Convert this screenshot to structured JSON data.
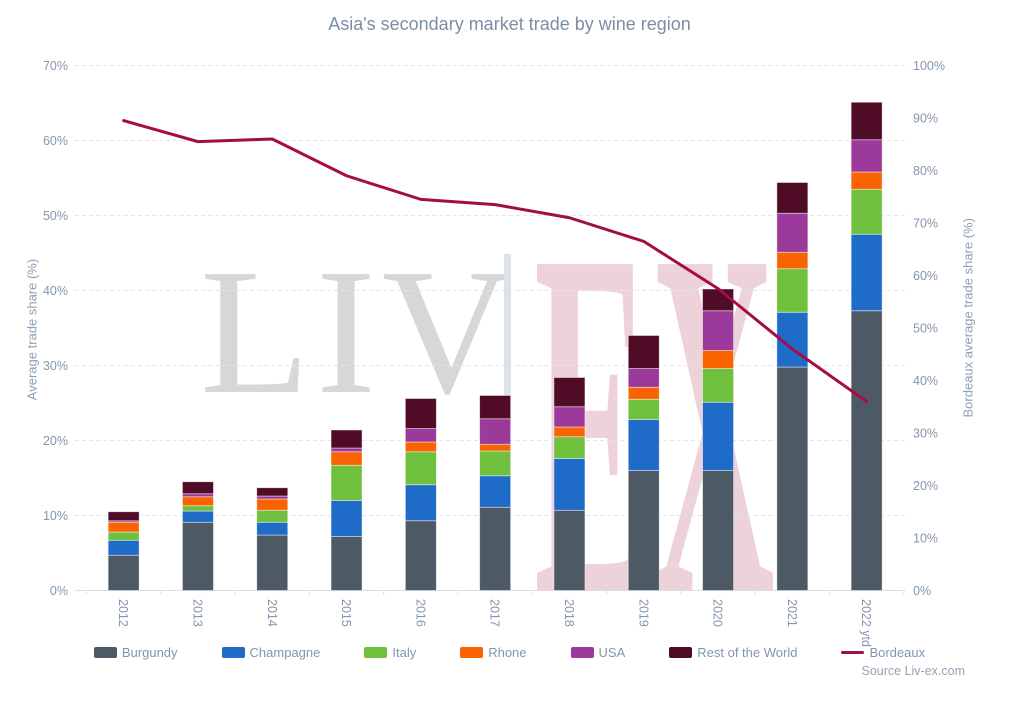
{
  "title": "Asia's secondary market trade by wine region",
  "source": "Source Liv-ex.com",
  "watermark": {
    "left": "LIV",
    "right": "EX"
  },
  "colors": {
    "title_text": "#7b8ea4",
    "axis_text": "#8da0b5",
    "tick_text": "#8496ab",
    "gridline": "#e2e5e9",
    "axis_line": "#d8dee4",
    "watermark_gray": "#d7d7d7",
    "watermark_pink": "#eed2da"
  },
  "chart_data": {
    "type": "bar",
    "subtype": "stacked-column-with-line",
    "title": "Asia's secondary market trade by wine region",
    "categories": [
      "2012",
      "2013",
      "2014",
      "2015",
      "2016",
      "2017",
      "2018",
      "2019",
      "2020",
      "2021",
      "2022 ytd"
    ],
    "series": [
      {
        "name": "Burgundy",
        "type": "bar",
        "axis": "left",
        "color": "#4d5a66",
        "values": [
          4.7,
          9.1,
          7.4,
          7.2,
          9.3,
          11.1,
          10.7,
          16.0,
          16.0,
          29.8,
          37.3
        ]
      },
      {
        "name": "Champagne",
        "type": "bar",
        "axis": "left",
        "color": "#1e6bc8",
        "values": [
          2.0,
          1.5,
          1.7,
          4.8,
          4.8,
          4.2,
          6.9,
          6.8,
          9.1,
          7.3,
          10.2
        ]
      },
      {
        "name": "Italy",
        "type": "bar",
        "axis": "left",
        "color": "#6fc13d",
        "values": [
          1.1,
          0.7,
          1.6,
          4.7,
          4.4,
          3.3,
          2.9,
          2.7,
          4.5,
          5.8,
          6.0
        ]
      },
      {
        "name": "Rhone",
        "type": "bar",
        "axis": "left",
        "color": "#f96302",
        "values": [
          1.3,
          1.2,
          1.5,
          1.8,
          1.3,
          0.9,
          1.3,
          1.6,
          2.4,
          2.2,
          2.3
        ]
      },
      {
        "name": "USA",
        "type": "bar",
        "axis": "left",
        "color": "#9c3a9b",
        "values": [
          0.2,
          0.4,
          0.4,
          0.5,
          1.8,
          3.4,
          2.7,
          2.5,
          5.3,
          5.2,
          4.3
        ]
      },
      {
        "name": "Rest of the World",
        "type": "bar",
        "axis": "left",
        "color": "#500c26",
        "values": [
          1.2,
          1.6,
          1.1,
          2.4,
          4.0,
          3.1,
          3.9,
          4.4,
          2.9,
          4.1,
          5.0
        ]
      },
      {
        "name": "Bordeaux",
        "type": "line",
        "axis": "right",
        "color": "#a40d49",
        "values": [
          89.5,
          85.5,
          86.0,
          79.0,
          74.5,
          73.5,
          71.0,
          66.5,
          57.5,
          46.0,
          36.0
        ]
      }
    ],
    "left_axis": {
      "label": "Average trade share (%)",
      "min": 0,
      "max": 70,
      "step": 10,
      "ticks": [
        "0%",
        "10%",
        "20%",
        "30%",
        "40%",
        "50%",
        "60%",
        "70%"
      ]
    },
    "right_axis": {
      "label": "Bordeaux average trade share (%)",
      "min": 0,
      "max": 100,
      "step": 10,
      "ticks": [
        "0%",
        "10%",
        "20%",
        "30%",
        "40%",
        "50%",
        "60%",
        "70%",
        "80%",
        "90%",
        "100%"
      ]
    },
    "legend_position": "bottom",
    "grid": "dashed-horizontal"
  }
}
